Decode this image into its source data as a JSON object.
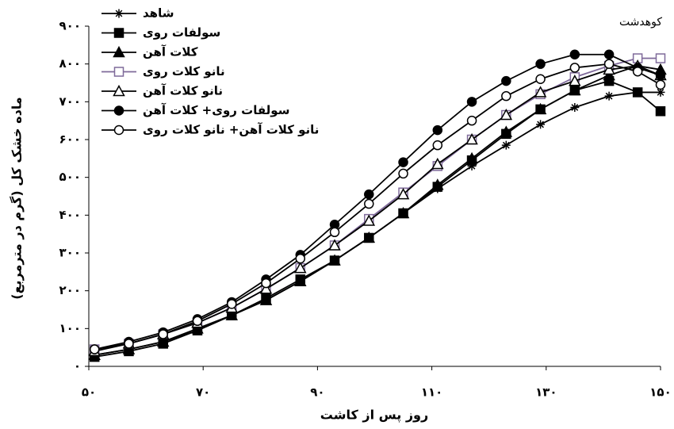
{
  "chart_data": {
    "type": "line",
    "annotation": "کوهدشت",
    "x_label": "روز پس از کاشت",
    "y_label": "ماده خشک کل (گرم در مترمربع)",
    "x": [
      51,
      57,
      63,
      69,
      75,
      81,
      87,
      93,
      99,
      105,
      111,
      117,
      123,
      129,
      135,
      141,
      146,
      150
    ],
    "xlim": [
      50,
      150
    ],
    "ylim": [
      0,
      900
    ],
    "xticks": [
      {
        "value": 50,
        "label": "۵۰"
      },
      {
        "value": 70,
        "label": "۷۰"
      },
      {
        "value": 90,
        "label": "۹۰"
      },
      {
        "value": 110,
        "label": "۱۱۰"
      },
      {
        "value": 130,
        "label": "۱۳۰"
      },
      {
        "value": 150,
        "label": "۱۵۰"
      }
    ],
    "yticks": [
      {
        "value": 0,
        "label": "۰"
      },
      {
        "value": 100,
        "label": "۱۰۰"
      },
      {
        "value": 200,
        "label": "۲۰۰"
      },
      {
        "value": 300,
        "label": "۳۰۰"
      },
      {
        "value": 400,
        "label": "۴۰۰"
      },
      {
        "value": 500,
        "label": "۵۰۰"
      },
      {
        "value": 600,
        "label": "۶۰۰"
      },
      {
        "value": 700,
        "label": "۷۰۰"
      },
      {
        "value": 800,
        "label": "۸۰۰"
      },
      {
        "value": 900,
        "label": "۹۰۰"
      }
    ],
    "legend": "top-left",
    "series": [
      {
        "name": "شاهد",
        "color": "#000000",
        "marker": "asterisk",
        "values": [
          30,
          45,
          65,
          95,
          135,
          175,
          225,
          280,
          340,
          405,
          470,
          530,
          585,
          640,
          685,
          715,
          725,
          725
        ]
      },
      {
        "name": "سولفات روی",
        "color": "#000000",
        "marker": "square",
        "values": [
          25,
          40,
          60,
          95,
          135,
          180,
          230,
          280,
          340,
          405,
          475,
          545,
          615,
          680,
          730,
          755,
          725,
          675
        ]
      },
      {
        "name": "کلات آهن",
        "color": "#000000",
        "marker": "triangle",
        "values": [
          30,
          45,
          65,
          100,
          135,
          175,
          225,
          280,
          340,
          405,
          480,
          550,
          620,
          680,
          730,
          770,
          795,
          785
        ]
      },
      {
        "name": "نانو کلات روی",
        "color": "#7f6a9a",
        "marker": "square-open",
        "values": [
          45,
          60,
          85,
          115,
          155,
          205,
          260,
          320,
          390,
          460,
          530,
          600,
          665,
          720,
          765,
          795,
          815,
          815
        ]
      },
      {
        "name": "نانو کلات آهن",
        "color": "#000000",
        "marker": "triangle-open",
        "values": [
          40,
          60,
          85,
          115,
          155,
          205,
          260,
          320,
          385,
          455,
          535,
          600,
          665,
          725,
          755,
          785,
          795,
          770
        ]
      },
      {
        "name": "سولفات روی+ کلات آهن",
        "color": "#000000",
        "marker": "circle",
        "values": [
          45,
          65,
          90,
          125,
          170,
          230,
          295,
          375,
          455,
          540,
          625,
          700,
          755,
          800,
          825,
          825,
          790,
          770
        ]
      },
      {
        "name": "نانو کلات آهن+ نانو کلات روی",
        "color": "#000000",
        "marker": "circle-open",
        "values": [
          45,
          60,
          85,
          120,
          165,
          220,
          285,
          355,
          430,
          510,
          585,
          650,
          715,
          760,
          790,
          800,
          780,
          745
        ]
      }
    ]
  }
}
